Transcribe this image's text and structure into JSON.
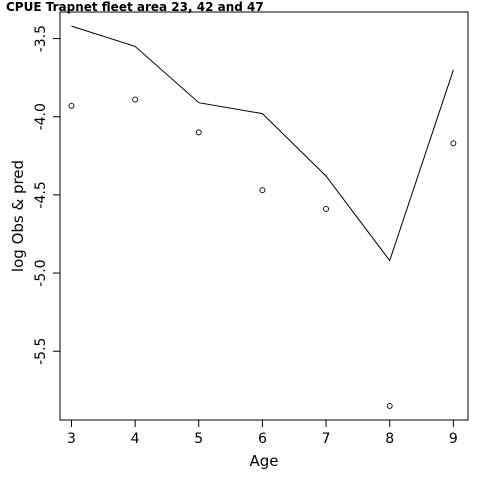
{
  "chart_data": {
    "type": "line",
    "title": "CPUE Trapnet fleet area 23, 42 and 47",
    "xlabel": "Age",
    "ylabel": "log Obs & pred",
    "xlim": [
      2.82,
      9.23
    ],
    "ylim": [
      -5.94,
      -3.33
    ],
    "x_ticks": [
      3,
      4,
      5,
      6,
      7,
      8,
      9
    ],
    "x_tick_labels": [
      "3",
      "4",
      "5",
      "6",
      "7",
      "8",
      "9"
    ],
    "y_ticks": [
      -3.5,
      -4.0,
      -4.5,
      -5.0,
      -5.5
    ],
    "y_tick_labels": [
      "-3.5",
      "-4.0",
      "-4.5",
      "-5.0",
      "-5.5"
    ],
    "grid": false,
    "series": [
      {
        "kind": "line",
        "x": [
          3,
          4,
          5,
          6,
          7,
          8,
          9
        ],
        "y": [
          -3.42,
          -3.55,
          -3.91,
          -3.98,
          -4.38,
          -4.92,
          -3.7
        ],
        "color": "#000000"
      },
      {
        "kind": "points",
        "x": [
          3,
          4,
          5,
          6,
          7,
          8,
          9
        ],
        "y": [
          -3.93,
          -3.89,
          -4.1,
          -4.47,
          -4.59,
          -5.85,
          -4.17
        ],
        "color": "#000000"
      }
    ]
  }
}
